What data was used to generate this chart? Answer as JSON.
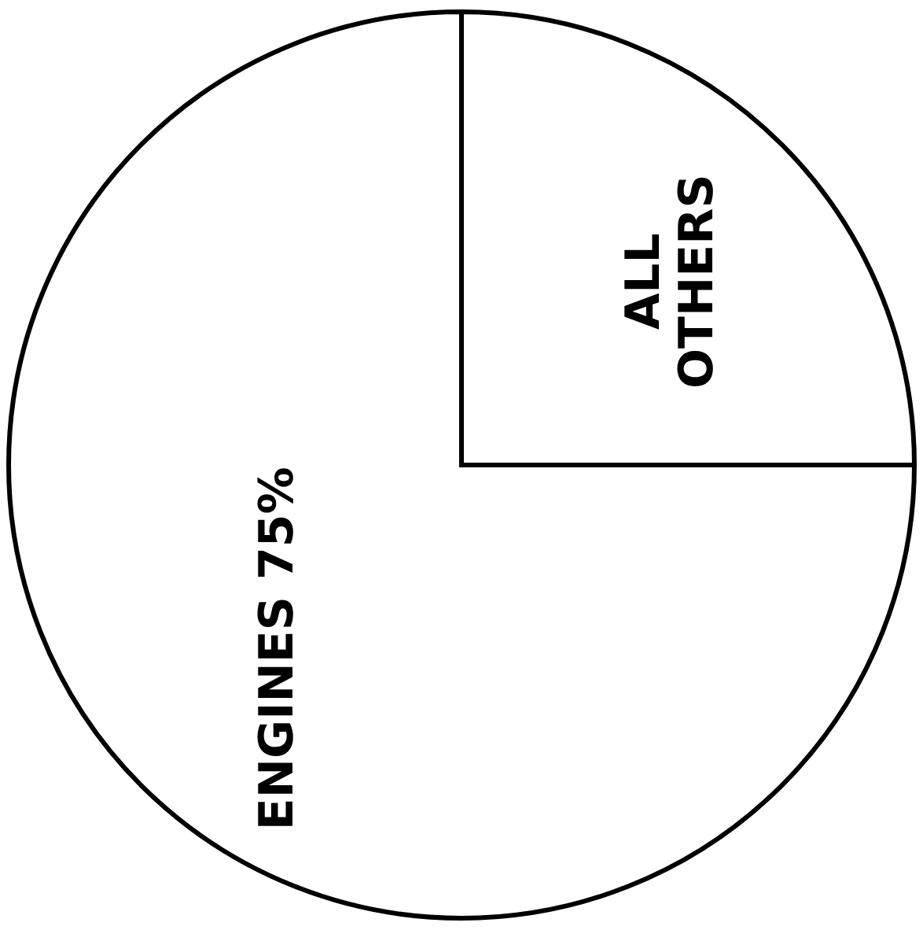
{
  "chart_data": {
    "type": "pie",
    "categories": [
      "ENGINES",
      "ALL OTHERS"
    ],
    "values": [
      75,
      25
    ],
    "colors": [
      "#ffffff",
      "#ffffff"
    ],
    "value_labels": [
      "75%",
      null
    ],
    "legend": false
  }
}
